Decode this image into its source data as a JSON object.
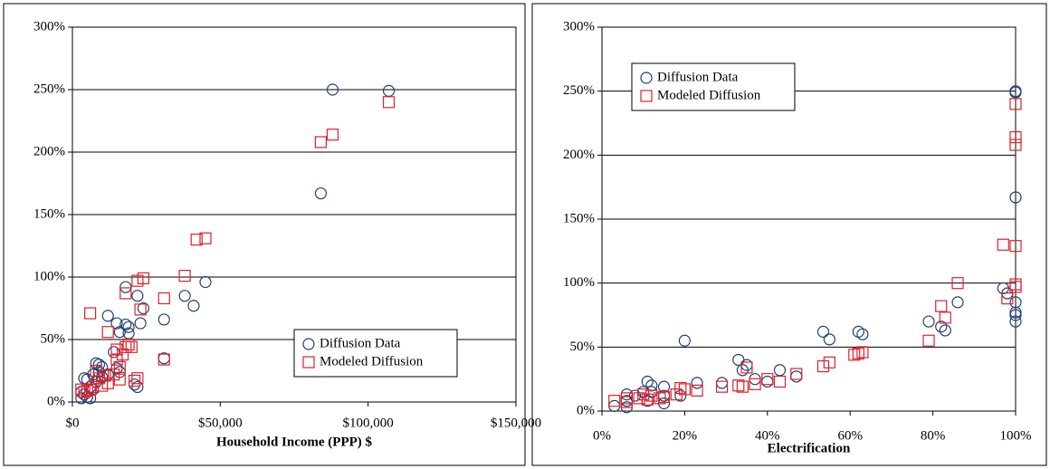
{
  "chart_data": [
    {
      "type": "scatter",
      "xlabel": "Household Income  (PPP) $",
      "xlim": [
        0,
        150000
      ],
      "xticks": [
        {
          "value": 0,
          "label": "$0"
        },
        {
          "value": 50000,
          "label": "$50,000"
        },
        {
          "value": 100000,
          "label": "$100,000"
        },
        {
          "value": 150000,
          "label": "$150,000"
        }
      ],
      "ylim": [
        0,
        300
      ],
      "yticks": [
        {
          "value": 0,
          "label": "0%"
        },
        {
          "value": 50,
          "label": "50%"
        },
        {
          "value": 100,
          "label": "100%"
        },
        {
          "value": 150,
          "label": "150%"
        },
        {
          "value": 200,
          "label": "200%"
        },
        {
          "value": 250,
          "label": "250%"
        },
        {
          "value": 300,
          "label": "300%"
        }
      ],
      "grid": true,
      "legend": "lower right",
      "series": [
        {
          "name": "Diffusion Data",
          "color": "#1f3f73",
          "marker": "circle",
          "x": [
            88000,
            107000,
            84000,
            45000,
            38000,
            41000,
            18000,
            22000,
            24000,
            23000,
            31000,
            12000,
            15000,
            18000,
            19000,
            16000,
            19000,
            14000,
            15000,
            16000,
            31000,
            21000,
            22000,
            8000,
            9000,
            10000,
            4000,
            5000,
            6000,
            7000,
            3000,
            4000,
            5000,
            6000,
            3000,
            8000,
            10000,
            12000,
            7000,
            9000
          ],
          "values": [
            250,
            249,
            167,
            96,
            85,
            77,
            92,
            85,
            75,
            63,
            66,
            69,
            63,
            62,
            60,
            56,
            55,
            40,
            27,
            24,
            35,
            14,
            12,
            31,
            30,
            28,
            19,
            18,
            12,
            10,
            8,
            6,
            4,
            3,
            3,
            16,
            20,
            22,
            22,
            24
          ]
        },
        {
          "name": "Modeled Diffusion",
          "color": "#e0202a",
          "marker": "square",
          "x": [
            107000,
            88000,
            84000,
            45000,
            42000,
            38000,
            24000,
            22000,
            31000,
            23000,
            18000,
            6000,
            12000,
            15000,
            19000,
            18000,
            20000,
            17000,
            15000,
            16000,
            14000,
            11000,
            12000,
            10000,
            8000,
            9000,
            7000,
            6000,
            5000,
            4000,
            3000,
            31000,
            21000,
            22000,
            16000
          ],
          "values": [
            240,
            214,
            208,
            131,
            130,
            101,
            99,
            97,
            83,
            74,
            87,
            71,
            56,
            42,
            46,
            44,
            44,
            38,
            34,
            28,
            22,
            21,
            15,
            13,
            25,
            19,
            12,
            10,
            9,
            8,
            10,
            34,
            17,
            19,
            18
          ]
        }
      ]
    },
    {
      "type": "scatter",
      "xlabel": "Electrification",
      "xlim": [
        0,
        100
      ],
      "xticks": [
        {
          "value": 0,
          "label": "0%"
        },
        {
          "value": 20,
          "label": "20%"
        },
        {
          "value": 40,
          "label": "40%"
        },
        {
          "value": 60,
          "label": "60%"
        },
        {
          "value": 80,
          "label": "80%"
        },
        {
          "value": 100,
          "label": "100%"
        }
      ],
      "ylim": [
        0,
        300
      ],
      "yticks": [
        {
          "value": 0,
          "label": "0%"
        },
        {
          "value": 50,
          "label": "50%"
        },
        {
          "value": 100,
          "label": "100%"
        },
        {
          "value": 150,
          "label": "150%"
        },
        {
          "value": 200,
          "label": "200%"
        },
        {
          "value": 250,
          "label": "250%"
        },
        {
          "value": 300,
          "label": "300%"
        }
      ],
      "grid": true,
      "legend": "upper left",
      "series": [
        {
          "name": "Diffusion Data",
          "color": "#1f3f73",
          "marker": "circle",
          "x": [
            100,
            100,
            100,
            97,
            98,
            100,
            100,
            100,
            100,
            86,
            79,
            82,
            83,
            53.5,
            62,
            63,
            55,
            20,
            33,
            35,
            34,
            43,
            37,
            40,
            47,
            29,
            23,
            11,
            12,
            15,
            10,
            12,
            6,
            8,
            15,
            19,
            6,
            11,
            15,
            3,
            6
          ],
          "values": [
            250,
            249,
            167,
            96,
            92,
            85,
            77,
            75,
            70,
            85,
            70,
            66,
            63,
            62,
            62,
            60,
            56,
            55,
            40,
            36,
            32,
            32,
            25,
            23,
            27,
            22,
            22,
            23,
            20,
            19,
            15,
            15,
            13,
            12,
            12,
            12,
            8,
            8,
            6,
            4,
            3
          ]
        },
        {
          "name": "Modeled Diffusion",
          "color": "#e0202a",
          "marker": "square",
          "x": [
            100,
            100,
            100,
            97,
            100,
            100,
            100,
            98,
            86,
            82,
            83,
            79,
            61,
            62,
            63,
            55,
            53.5,
            35,
            47,
            43,
            40,
            37,
            34,
            33,
            29,
            23,
            20,
            19,
            15,
            12,
            10,
            9,
            6,
            6,
            3,
            18,
            11,
            14
          ],
          "values": [
            240,
            214,
            208,
            130,
            129,
            99,
            97,
            88,
            100,
            82,
            73,
            55,
            44,
            45,
            46,
            38,
            35,
            34,
            29,
            23,
            25,
            21,
            19,
            20,
            19,
            16,
            17,
            18,
            11,
            12,
            13,
            10,
            10,
            7,
            8,
            13,
            9,
            10
          ]
        }
      ]
    }
  ]
}
